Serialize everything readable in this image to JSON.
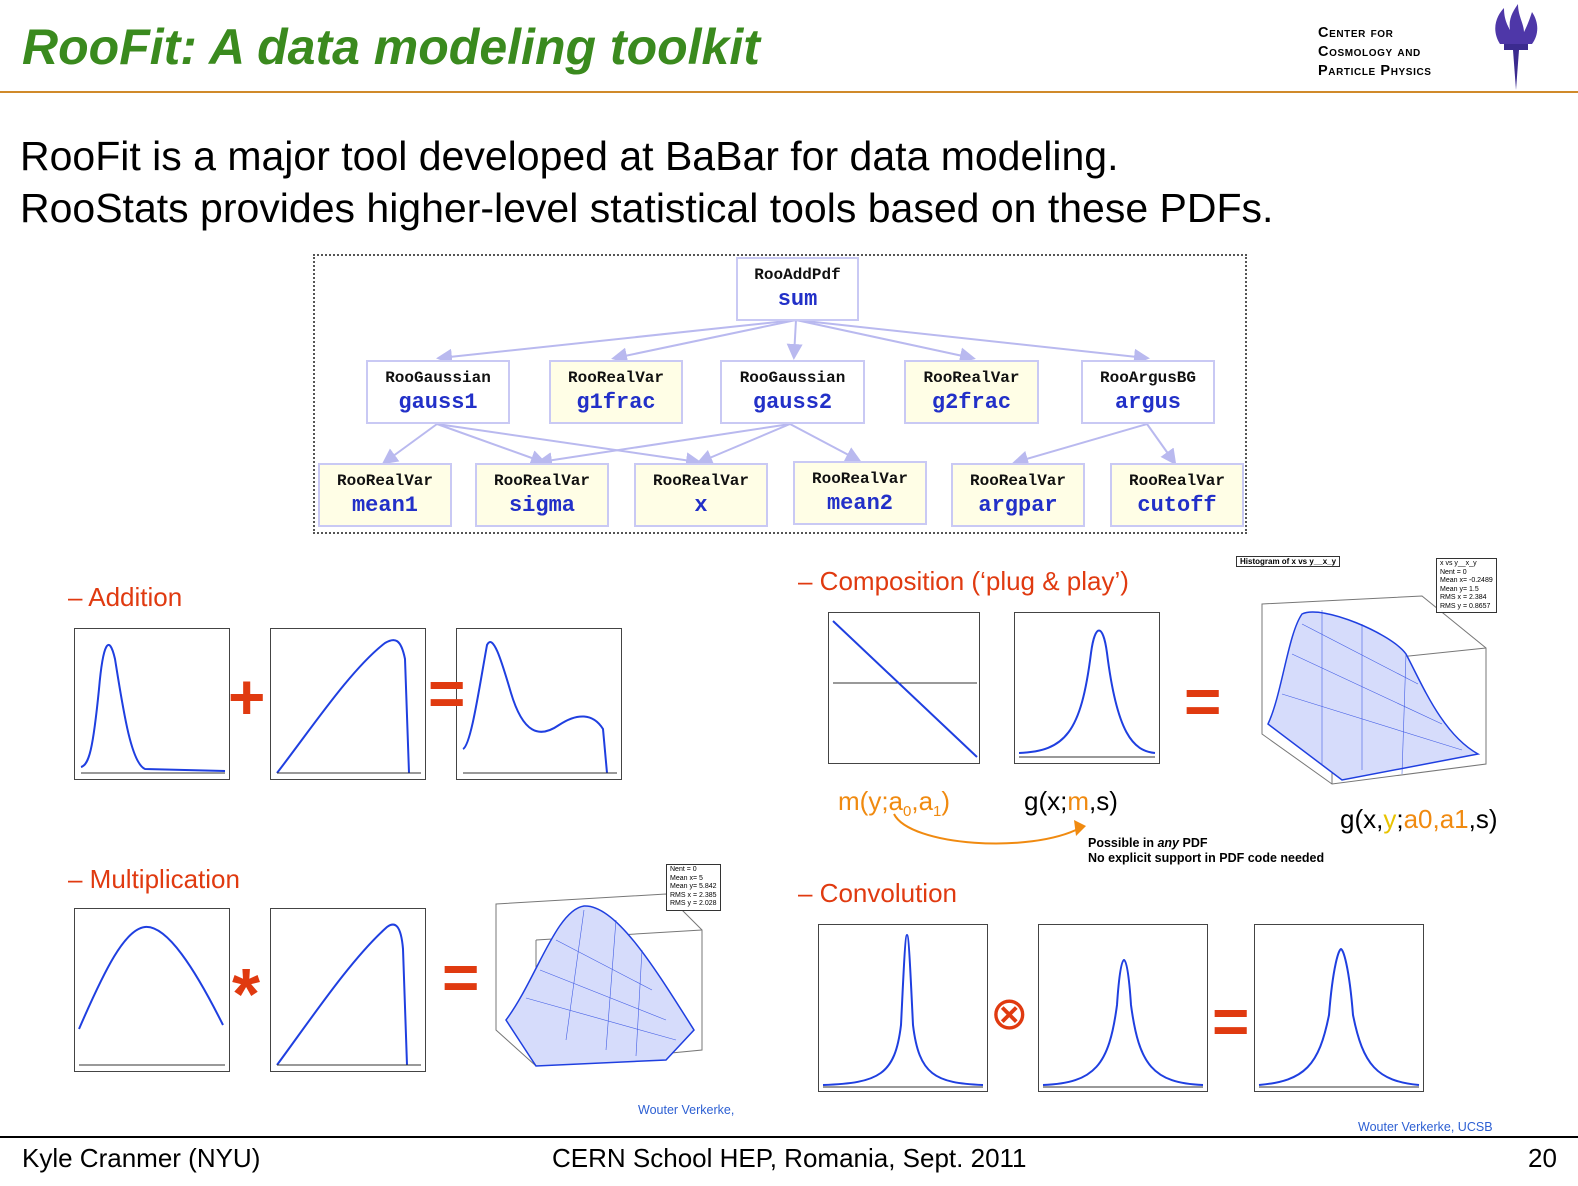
{
  "slide": {
    "title": "RooFit: A data modeling toolkit",
    "logo_lines": [
      "Center for",
      "Cosmology and",
      "Particle Physics"
    ],
    "intro_lines": [
      "RooFit is a major tool developed at BaBar for data modeling.",
      "RooStats provides higher-level statistical tools based on these PDFs."
    ]
  },
  "tree": {
    "root": {
      "cls": "RooAddPdf",
      "name": "sum"
    },
    "level1": [
      {
        "cls": "RooGaussian",
        "name": "gauss1"
      },
      {
        "cls": "RooRealVar",
        "name": "g1frac"
      },
      {
        "cls": "RooGaussian",
        "name": "gauss2"
      },
      {
        "cls": "RooRealVar",
        "name": "g2frac"
      },
      {
        "cls": "RooArgusBG",
        "name": "argus"
      }
    ],
    "level2": [
      {
        "cls": "RooRealVar",
        "name": "mean1"
      },
      {
        "cls": "RooRealVar",
        "name": "sigma"
      },
      {
        "cls": "RooRealVar",
        "name": "x"
      },
      {
        "cls": "RooRealVar",
        "name": "mean2"
      },
      {
        "cls": "RooRealVar",
        "name": "argpar"
      },
      {
        "cls": "RooRealVar",
        "name": "cutoff"
      }
    ]
  },
  "sections": {
    "addition": "– Addition",
    "multiplication": "– Multiplication",
    "composition": "– Composition (‘plug & play’)",
    "convolution": "– Convolution"
  },
  "operators": {
    "plus": "+",
    "equals": "=",
    "times": "*",
    "convolve": "⊗"
  },
  "composition": {
    "m_label": "m(y;a",
    "m_sub0": "0",
    "m_sep": ",a",
    "m_sub1": "1",
    "m_close": ")",
    "g_prefix": "g(x;",
    "g_m": "m",
    "g_suffix": ",s)",
    "result_prefix": "g(x,",
    "result_y": "y",
    "result_sep": ";",
    "result_params": "a0,a1",
    "result_suffix": ",s)",
    "note_line1_a": "Possible in ",
    "note_line1_em": "any",
    "note_line1_b": " PDF",
    "note_line2": "No explicit support in PDF code needed",
    "hist_title": "Histogram of x vs y__x_y",
    "stats_lines": [
      "x vs y__x_y",
      "Nent = 0",
      "Mean x= -0.2489",
      "Mean y=   1.5",
      "RMS x = 2.384",
      "RMS y = 0.8657"
    ]
  },
  "multiplication_stats": [
    "Nent = 0",
    "Mean x=     5",
    "Mean y=  5.842",
    "RMS x =  2.385",
    "RMS y =  2.028"
  ],
  "credits": {
    "left": "Wouter Verkerke,",
    "right": "Wouter Verkerke, UCSB"
  },
  "footer": {
    "author": "Kyle Cranmer (NYU)",
    "event": "CERN School HEP, Romania, Sept. 2011",
    "page": "20"
  },
  "colors": {
    "title": "#3a8a1e",
    "section": "#e03a10",
    "curve": "#1f3fe0",
    "node_border": "#c9c9f4",
    "var_fill": "#fffee6",
    "accent": "#f08a10"
  }
}
